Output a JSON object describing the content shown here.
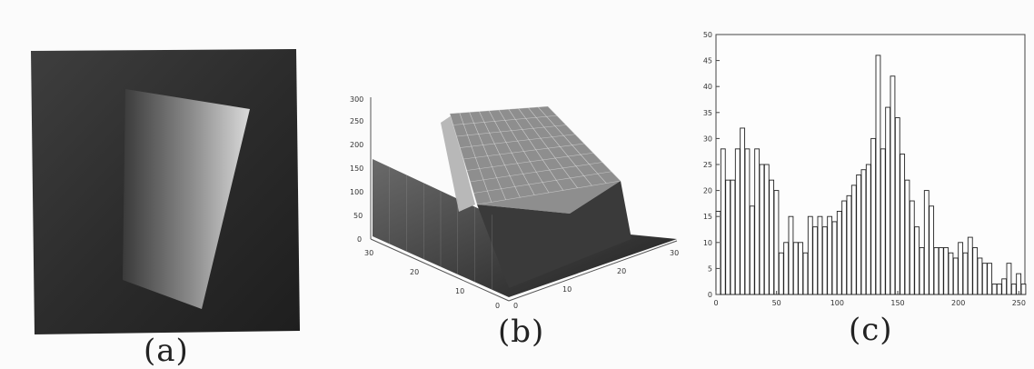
{
  "figures": {
    "a": {
      "label": "(a)"
    },
    "b": {
      "label": "(b)",
      "z_ticks": [
        "300",
        "250",
        "200",
        "150",
        "100",
        "50",
        "0"
      ],
      "y_ticks": [
        "30",
        "20",
        "10",
        "0"
      ],
      "x_ticks": [
        "0",
        "10",
        "20",
        "30"
      ]
    },
    "c": {
      "label": "(c)"
    }
  },
  "chart_data": {
    "type": "bar",
    "x": [
      0,
      4,
      8,
      12,
      16,
      20,
      24,
      28,
      32,
      36,
      40,
      44,
      48,
      52,
      56,
      60,
      64,
      68,
      72,
      76,
      80,
      84,
      88,
      92,
      96,
      100,
      104,
      108,
      112,
      116,
      120,
      124,
      128,
      132,
      136,
      140,
      144,
      148,
      152,
      156,
      160,
      164,
      168,
      172,
      176,
      180,
      184,
      188,
      192,
      196,
      200,
      204,
      208,
      212,
      216,
      220,
      224,
      228,
      232,
      236,
      240,
      244,
      248,
      252
    ],
    "values": [
      16,
      28,
      22,
      22,
      28,
      32,
      28,
      17,
      28,
      25,
      25,
      22,
      20,
      8,
      10,
      15,
      10,
      10,
      8,
      15,
      13,
      15,
      13,
      15,
      14,
      16,
      18,
      19,
      21,
      23,
      24,
      25,
      30,
      46,
      28,
      36,
      42,
      34,
      27,
      22,
      18,
      13,
      9,
      20,
      17,
      9,
      9,
      9,
      8,
      7,
      10,
      8,
      11,
      9,
      7,
      6,
      6,
      2,
      2,
      3,
      6,
      2,
      4,
      2
    ],
    "xlim": [
      0,
      255
    ],
    "ylim": [
      0,
      50
    ],
    "x_ticks": [
      0,
      50,
      100,
      150,
      200,
      250
    ],
    "y_ticks": [
      0,
      5,
      10,
      15,
      20,
      25,
      30,
      35,
      40,
      45,
      50
    ]
  }
}
